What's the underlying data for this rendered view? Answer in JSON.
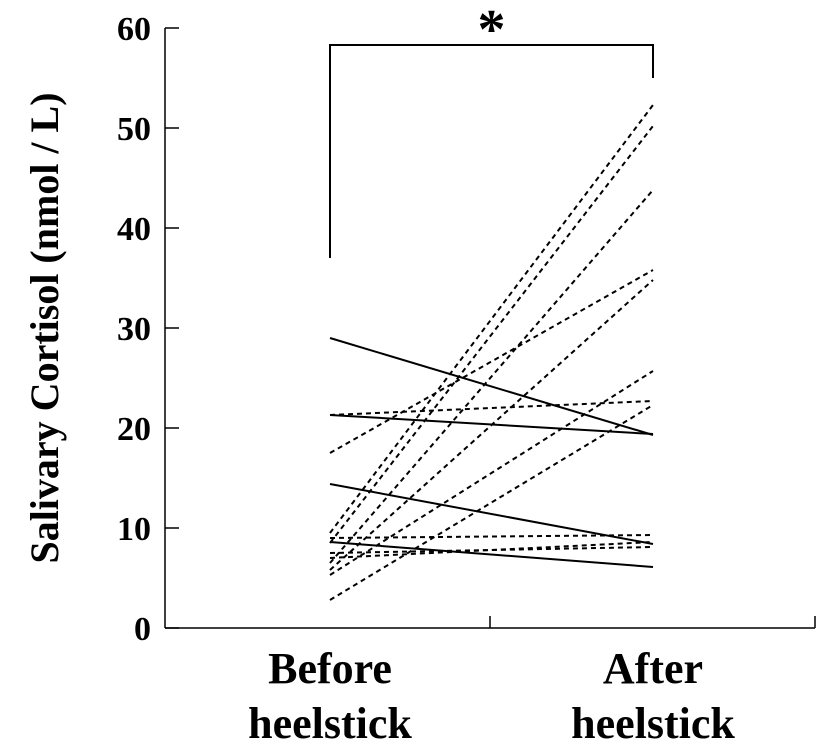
{
  "chart_data": {
    "type": "line",
    "ylabel": "Salivary Cortisol (nmol / L)",
    "ylim": [
      0,
      60
    ],
    "yticks": [
      0,
      10,
      20,
      30,
      40,
      50,
      60
    ],
    "categories": [
      {
        "line1": "Before",
        "line2": "heelstick"
      },
      {
        "line1": "After",
        "line2": "heelstick"
      }
    ],
    "grid": false,
    "significance": {
      "label": "*",
      "between": [
        0,
        1
      ]
    },
    "series": [
      {
        "style": "solid",
        "values": [
          29.0,
          19.3
        ]
      },
      {
        "style": "solid",
        "values": [
          21.3,
          19.4
        ]
      },
      {
        "style": "solid",
        "values": [
          14.4,
          8.4
        ]
      },
      {
        "style": "solid",
        "values": [
          8.6,
          6.1
        ]
      },
      {
        "style": "dashed",
        "values": [
          21.3,
          22.7
        ]
      },
      {
        "style": "dashed",
        "values": [
          17.5,
          35.8
        ]
      },
      {
        "style": "dashed",
        "values": [
          9.5,
          52.3
        ]
      },
      {
        "style": "dashed",
        "values": [
          8.5,
          50.2
        ]
      },
      {
        "style": "dashed",
        "values": [
          6.5,
          43.8
        ]
      },
      {
        "style": "dashed",
        "values": [
          5.8,
          34.8
        ]
      },
      {
        "style": "dashed",
        "values": [
          5.3,
          25.7
        ]
      },
      {
        "style": "dashed",
        "values": [
          2.8,
          22.3
        ]
      },
      {
        "style": "dashed",
        "values": [
          9.0,
          9.3
        ]
      },
      {
        "style": "dashed",
        "values": [
          7.5,
          8.1
        ]
      },
      {
        "style": "dashed",
        "values": [
          7.0,
          8.6
        ]
      }
    ]
  }
}
